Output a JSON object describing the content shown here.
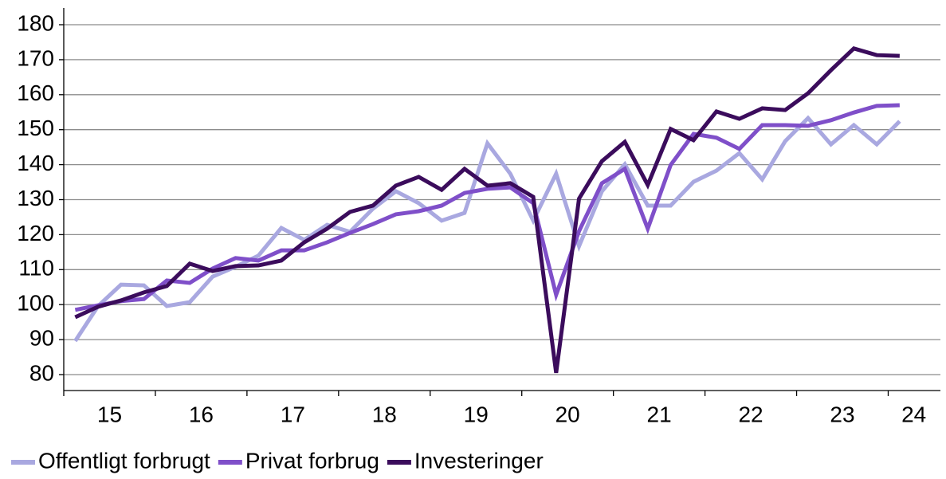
{
  "chart_data": {
    "type": "line",
    "x": [
      15.125,
      15.375,
      15.625,
      15.875,
      16.125,
      16.375,
      16.625,
      16.875,
      17.125,
      17.375,
      17.625,
      17.875,
      18.125,
      18.375,
      18.625,
      18.875,
      19.125,
      19.375,
      19.625,
      19.875,
      20.125,
      20.375,
      20.625,
      20.875,
      21.125,
      21.375,
      21.625,
      21.875,
      22.125,
      22.375,
      22.625,
      22.875,
      23.125,
      23.375,
      23.625,
      23.875,
      24.125
    ],
    "series": [
      {
        "name": "Offentligt forbrugt",
        "color": "#a9a8e0",
        "values": [
          89.6,
          99.6,
          105.7,
          105.5,
          99.6,
          100.7,
          108,
          110.8,
          114,
          121.9,
          118.5,
          122.8,
          120.8,
          127.4,
          132.4,
          129,
          124,
          126.2,
          146.1,
          137.4,
          124,
          137.4,
          116.7,
          132.4,
          140.1,
          128.3,
          128.3,
          135.1,
          138.3,
          143.3,
          135.8,
          146.7,
          153.3,
          145.8,
          151.3,
          145.8,
          152.4
        ]
      },
      {
        "name": "Privat forbrug",
        "color": "#7f4fc9",
        "values": [
          98.5,
          99.8,
          101,
          101.6,
          106.9,
          106.2,
          110.3,
          113.3,
          112.6,
          115.5,
          115.5,
          117.8,
          120.5,
          123,
          125.8,
          126.7,
          128.3,
          131.9,
          133.1,
          133.5,
          129,
          102.8,
          121,
          134.7,
          138.8,
          121.7,
          139.9,
          148.8,
          147.7,
          144.5,
          151.3,
          151.3,
          151.1,
          152.7,
          154.9,
          156.8,
          157
        ]
      },
      {
        "name": "Investeringer",
        "color": "#3b0c5c",
        "values": [
          96.4,
          99.4,
          101.2,
          103.5,
          105.3,
          111.7,
          109.6,
          111,
          111.2,
          112.6,
          117.8,
          121.7,
          126.5,
          128.3,
          134,
          136.5,
          132.8,
          138.8,
          134,
          134.7,
          130.8,
          80.5,
          130.3,
          141,
          146.5,
          134.2,
          150.2,
          147,
          155.2,
          153.1,
          156.1,
          155.6,
          160.4,
          167,
          173.2,
          171.3,
          171.1
        ]
      }
    ],
    "xlim": [
      15,
      24.57
    ],
    "xticks": [
      {
        "value": 15.5,
        "label": "15"
      },
      {
        "value": 16.5,
        "label": "16"
      },
      {
        "value": 17.5,
        "label": "17"
      },
      {
        "value": 18.5,
        "label": "18"
      },
      {
        "value": 19.5,
        "label": "19"
      },
      {
        "value": 20.5,
        "label": "20"
      },
      {
        "value": 21.5,
        "label": "21"
      },
      {
        "value": 22.5,
        "label": "22"
      },
      {
        "value": 23.5,
        "label": "23"
      },
      {
        "value": 24.28,
        "label": "24"
      }
    ],
    "xboundaries": [
      15,
      16,
      17,
      18,
      19,
      20,
      21,
      22,
      23,
      24
    ],
    "ylim": [
      80,
      180
    ],
    "yticks": [
      80,
      90,
      100,
      110,
      120,
      130,
      140,
      150,
      160,
      170,
      180
    ],
    "grid": true,
    "legend": "bottom-left"
  }
}
